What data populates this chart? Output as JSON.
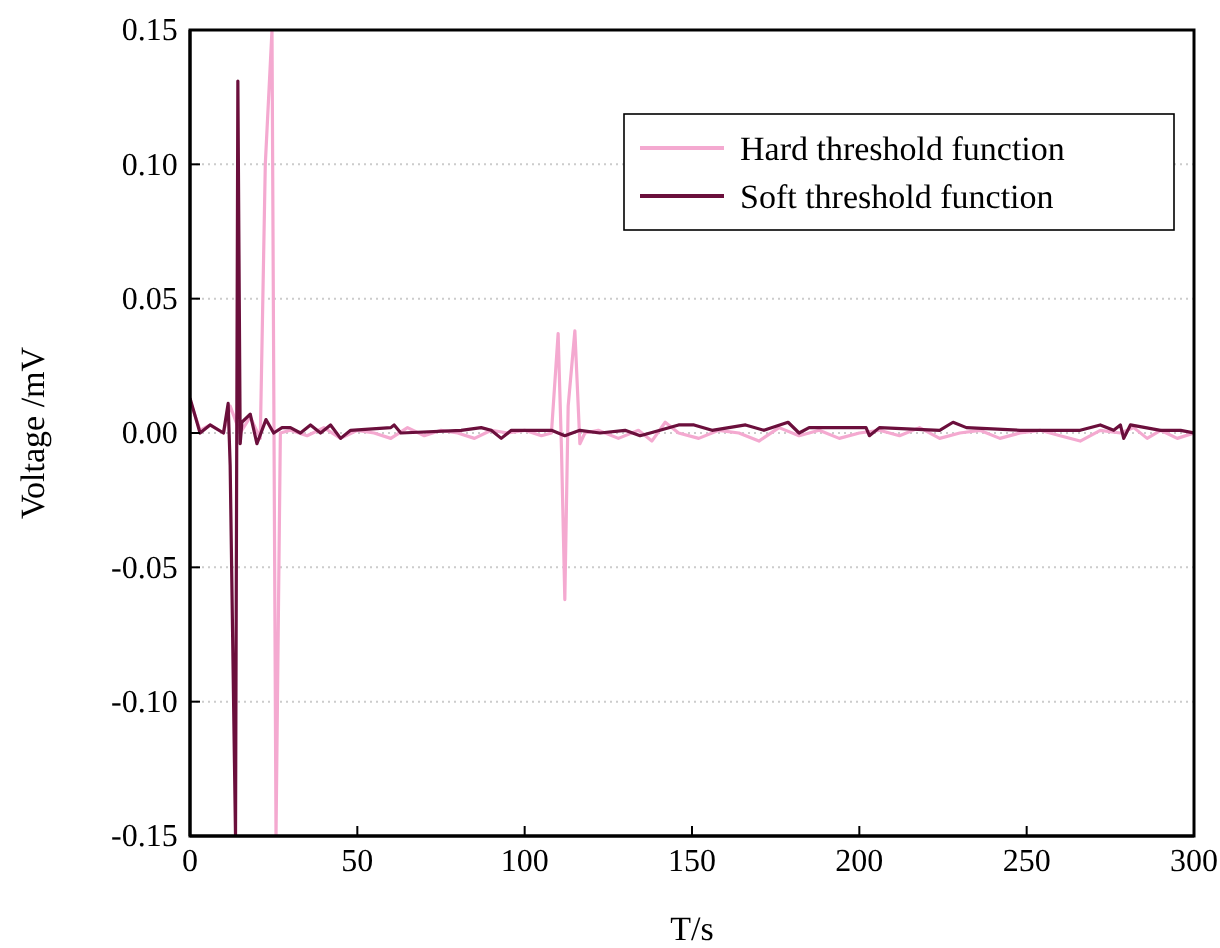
{
  "chart_data": {
    "type": "line",
    "xlabel": "T/s",
    "ylabel": "Voltage /mV",
    "xlim": [
      0,
      300
    ],
    "xticks": [
      0,
      50,
      100,
      150,
      200,
      250,
      300
    ],
    "ylim": [
      -0.15,
      0.15
    ],
    "yticks": [
      {
        "value": -0.15,
        "label": "-0.15"
      },
      {
        "value": -0.1,
        "label": "-0.10"
      },
      {
        "value": -0.05,
        "label": "-0.05"
      },
      {
        "value": 0,
        "label": "0.00"
      },
      {
        "value": 0.05,
        "label": "0.05"
      },
      {
        "value": 0.1,
        "label": "0.10"
      },
      {
        "value": 0.15,
        "label": "0.15"
      }
    ],
    "grid": "y",
    "legend": "top right",
    "line_style": "solid",
    "marker": "none",
    "series": [
      {
        "name": "Hard threshold function",
        "color": "#f4a9d0",
        "x": [
          0,
          3,
          6,
          10,
          12,
          15,
          18,
          21,
          22.5,
          24.5,
          25.7,
          27,
          30,
          35,
          40,
          45,
          50,
          55,
          60,
          65,
          70,
          75,
          80,
          85,
          90,
          95,
          100,
          105,
          108,
          110,
          111,
          112,
          113,
          115,
          116.5,
          118,
          122,
          128,
          134,
          138,
          142,
          146,
          152,
          158,
          164,
          170,
          176,
          182,
          188,
          194,
          200,
          206,
          212,
          218,
          224,
          230,
          236,
          242,
          248,
          254,
          260,
          266,
          272,
          278,
          282,
          286,
          290,
          295,
          300
        ],
        "values": [
          0.012,
          0.001,
          0.003,
          0.0,
          0.01,
          0.0,
          0.006,
          -0.002,
          0.1,
          0.15,
          -0.15,
          0.0,
          0.001,
          -0.001,
          0.002,
          -0.002,
          0.001,
          0.0,
          -0.002,
          0.002,
          -0.001,
          0.001,
          0.0,
          -0.002,
          0.001,
          0.0,
          0.001,
          -0.001,
          0.0,
          0.037,
          -0.006,
          -0.062,
          0.01,
          0.038,
          -0.004,
          0.0,
          0.001,
          -0.002,
          0.001,
          -0.003,
          0.004,
          0.0,
          -0.002,
          0.001,
          0.0,
          -0.003,
          0.002,
          -0.001,
          0.001,
          -0.002,
          0.0,
          0.001,
          -0.001,
          0.002,
          -0.002,
          0.0,
          0.001,
          -0.002,
          0.0,
          0.001,
          -0.001,
          -0.003,
          0.001,
          0.0,
          0.002,
          -0.002,
          0.001,
          -0.002,
          0.0
        ]
      },
      {
        "name": "Soft threshold function",
        "color": "#6b0f3c",
        "x": [
          0,
          3,
          6,
          10,
          11.4,
          12,
          13.6,
          14.3,
          15,
          15.5,
          18,
          20,
          22.7,
          25,
          27.5,
          30,
          33,
          36,
          39,
          42,
          45,
          48,
          60,
          61,
          63,
          81,
          87,
          90,
          93,
          96,
          105,
          108,
          112,
          116.5,
          122.5,
          130,
          134.5,
          137.5,
          146,
          150.6,
          156,
          166,
          171.5,
          178.7,
          182,
          185,
          202,
          203,
          206,
          224,
          228,
          232,
          248,
          266,
          272,
          276,
          278,
          279,
          281,
          290,
          296,
          300
        ],
        "values": [
          0.013,
          0.0,
          0.003,
          0.0,
          0.011,
          -0.012,
          -0.15,
          0.131,
          -0.004,
          0.004,
          0.007,
          -0.004,
          0.005,
          0.0,
          0.002,
          0.002,
          0.0,
          0.003,
          0.0,
          0.003,
          -0.002,
          0.001,
          0.002,
          0.003,
          0.0,
          0.001,
          0.002,
          0.001,
          -0.002,
          0.001,
          0.001,
          0.001,
          -0.001,
          0.001,
          0.0,
          0.001,
          -0.001,
          0.0,
          0.003,
          0.003,
          0.001,
          0.003,
          0.001,
          0.004,
          0.0,
          0.002,
          0.002,
          -0.001,
          0.002,
          0.001,
          0.004,
          0.002,
          0.001,
          0.001,
          0.003,
          0.001,
          0.003,
          -0.002,
          0.003,
          0.001,
          0.001,
          0.0
        ]
      }
    ]
  }
}
